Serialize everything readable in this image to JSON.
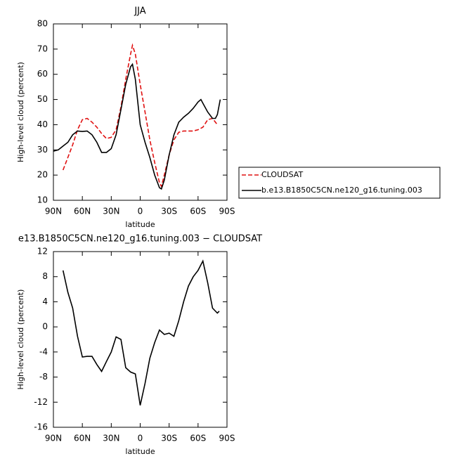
{
  "chart_data": [
    {
      "type": "line",
      "title": "JJA",
      "x_label": "latitude",
      "y_label": "High-level cloud (percent)",
      "xlim": [
        90,
        -90
      ],
      "xticks": [
        {
          "value": 90,
          "label": "90N"
        },
        {
          "value": 60,
          "label": "60N"
        },
        {
          "value": 30,
          "label": "30N"
        },
        0,
        {
          "value": -30,
          "label": "30S"
        },
        {
          "value": -60,
          "label": "60S"
        },
        {
          "value": -90,
          "label": "90S"
        }
      ],
      "ylim": [
        10,
        80
      ],
      "yticks": [
        10,
        20,
        30,
        40,
        50,
        60,
        70,
        80
      ],
      "legend": "right",
      "series": [
        {
          "name": "CLOUDSAT",
          "color": "#e01010",
          "style": "dashed",
          "x": [
            80,
            75,
            70,
            65,
            60,
            55,
            50,
            45,
            40,
            35,
            30,
            25,
            20,
            15,
            10,
            8,
            5,
            0,
            -5,
            -10,
            -15,
            -20,
            -22,
            -25,
            -30,
            -35,
            -40,
            -45,
            -50,
            -55,
            -60,
            -65,
            -70,
            -75,
            -80
          ],
          "values": [
            22,
            27,
            32,
            38,
            42,
            42.5,
            41,
            39,
            36.5,
            34.5,
            35,
            38,
            47,
            58,
            68,
            71.5,
            68,
            56,
            45,
            34,
            25,
            17,
            15.5,
            20,
            28,
            34,
            37,
            37.5,
            37.5,
            37.5,
            38,
            39,
            42,
            42.5,
            40
          ]
        },
        {
          "name": "b.e13.B1850C5CN.ne120_g16.tuning.003",
          "color": "#000000",
          "style": "solid",
          "x": [
            90,
            85,
            80,
            75,
            70,
            65,
            60,
            55,
            50,
            45,
            40,
            35,
            30,
            25,
            20,
            15,
            10,
            8,
            5,
            0,
            -5,
            -10,
            -15,
            -20,
            -22,
            -25,
            -30,
            -35,
            -40,
            -45,
            -50,
            -55,
            -60,
            -63,
            -65,
            -70,
            -75,
            -78,
            -80,
            -83
          ],
          "values": [
            29.5,
            30,
            31.5,
            33,
            36,
            37.5,
            37.3,
            37.5,
            36,
            33,
            29,
            29,
            30.5,
            36,
            46,
            56,
            63,
            64,
            58,
            40,
            33,
            27,
            20,
            15,
            14.5,
            18,
            28,
            36,
            41,
            43,
            44.5,
            46.5,
            49,
            50,
            48.5,
            45,
            42.5,
            42.5,
            44,
            50
          ]
        }
      ]
    },
    {
      "type": "line",
      "title": "e13.B1850C5CN.ne120_g16.tuning.003 − CLOUDSAT",
      "x_label": "latitude",
      "y_label": "High-level cloud (percent)",
      "xlim": [
        90,
        -90
      ],
      "xticks": [
        {
          "value": 90,
          "label": "90N"
        },
        {
          "value": 60,
          "label": "60N"
        },
        {
          "value": 30,
          "label": "30N"
        },
        0,
        {
          "value": -30,
          "label": "30S"
        },
        {
          "value": -60,
          "label": "60S"
        },
        {
          "value": -90,
          "label": "90S"
        }
      ],
      "ylim": [
        -16,
        12
      ],
      "yticks": [
        -16,
        -12,
        -8,
        -4,
        0,
        4,
        8,
        12
      ],
      "color": "#000000",
      "x": [
        80,
        75,
        70,
        65,
        60,
        55,
        50,
        45,
        40,
        35,
        30,
        25,
        20,
        15,
        10,
        5,
        0,
        -5,
        -10,
        -15,
        -20,
        -25,
        -30,
        -35,
        -40,
        -45,
        -50,
        -55,
        -60,
        -65,
        -70,
        -75,
        -80,
        -82
      ],
      "values": [
        9,
        5.5,
        3,
        -1.5,
        -4.8,
        -4.7,
        -4.7,
        -6,
        -7.1,
        -5.5,
        -4,
        -1.6,
        -2,
        -6.5,
        -7.2,
        -7.5,
        -12.5,
        -9,
        -5,
        -2.5,
        -0.5,
        -1.2,
        -1,
        -1.5,
        1,
        4,
        6.5,
        8,
        9,
        10.5,
        7,
        3,
        2.2,
        2.5
      ]
    }
  ]
}
